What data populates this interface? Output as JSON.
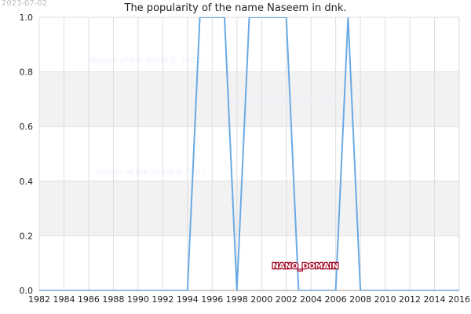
{
  "chart_data": {
    "type": "line",
    "title": "The popularity of the name Naseem in dnk.",
    "date": "2023-07-02",
    "annotation": "NANO_DOMAIN",
    "watermarks": [
      "Names of the World © 2023",
      "Names of the World © 2023",
      "Names of the World © 2023"
    ],
    "x": [
      1982,
      1983,
      1984,
      1985,
      1986,
      1987,
      1988,
      1989,
      1990,
      1991,
      1992,
      1993,
      1994,
      1995,
      1996,
      1997,
      1998,
      1999,
      2000,
      2001,
      2002,
      2003,
      2004,
      2005,
      2006,
      2007,
      2008,
      2009,
      2010,
      2011,
      2012,
      2013,
      2014,
      2015,
      2016
    ],
    "series": [
      {
        "name": "Naseem",
        "color": "#6aaae4",
        "values": [
          0,
          0,
          0,
          0,
          0,
          0,
          0,
          0,
          0,
          0,
          0,
          0,
          0,
          1,
          1,
          1,
          0,
          1,
          1,
          1,
          1,
          0,
          0,
          0,
          0,
          1,
          0,
          0,
          0,
          0,
          0,
          0,
          0,
          0,
          0
        ]
      }
    ],
    "xlim": [
      1982,
      2016
    ],
    "xticks": [
      1982,
      1984,
      1986,
      1988,
      1990,
      1992,
      1994,
      1996,
      1998,
      2000,
      2002,
      2004,
      2006,
      2008,
      2010,
      2012,
      2014,
      2016
    ],
    "ylim": [
      0,
      1
    ],
    "yticks": [
      {
        "value": 0,
        "label": "0.0"
      },
      0.2,
      0.4,
      0.6,
      0.8,
      {
        "value": 1,
        "label": "1.0"
      }
    ],
    "grid": true
  }
}
